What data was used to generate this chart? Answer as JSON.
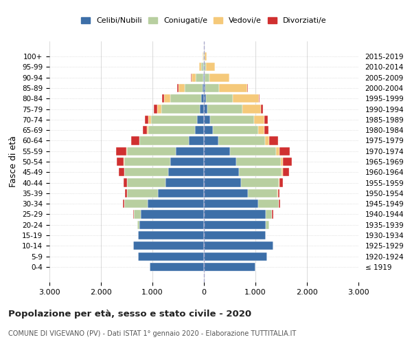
{
  "age_groups": [
    "0-4",
    "5-9",
    "10-14",
    "15-19",
    "20-24",
    "25-29",
    "30-34",
    "35-39",
    "40-44",
    "45-49",
    "50-54",
    "55-59",
    "60-64",
    "65-69",
    "70-74",
    "75-79",
    "80-84",
    "85-89",
    "90-94",
    "95-99",
    "100+"
  ],
  "birth_years": [
    "2015-2019",
    "2010-2014",
    "2005-2009",
    "2000-2004",
    "1995-1999",
    "1990-1994",
    "1985-1989",
    "1980-1984",
    "1975-1979",
    "1970-1974",
    "1965-1969",
    "1960-1964",
    "1955-1959",
    "1950-1954",
    "1945-1949",
    "1940-1944",
    "1935-1939",
    "1930-1934",
    "1925-1929",
    "1920-1924",
    "≤ 1919"
  ],
  "male": {
    "celibi": [
      1050,
      1280,
      1380,
      1280,
      1250,
      1230,
      1100,
      900,
      750,
      700,
      650,
      550,
      300,
      180,
      130,
      80,
      50,
      30,
      15,
      10,
      2
    ],
    "coniugati": [
      0,
      0,
      0,
      0,
      50,
      130,
      450,
      600,
      750,
      850,
      900,
      950,
      950,
      900,
      900,
      750,
      600,
      350,
      150,
      50,
      10
    ],
    "vedovi": [
      0,
      0,
      0,
      0,
      0,
      0,
      0,
      0,
      0,
      0,
      10,
      10,
      10,
      30,
      50,
      80,
      130,
      120,
      80,
      30,
      10
    ],
    "divorziati": [
      0,
      0,
      0,
      0,
      0,
      20,
      30,
      30,
      60,
      100,
      130,
      200,
      150,
      80,
      70,
      60,
      30,
      15,
      5,
      3,
      0
    ]
  },
  "female": {
    "nubili": [
      1000,
      1230,
      1350,
      1200,
      1200,
      1200,
      1050,
      850,
      720,
      680,
      620,
      500,
      280,
      170,
      120,
      70,
      40,
      20,
      10,
      5,
      2
    ],
    "coniugate": [
      0,
      0,
      0,
      0,
      60,
      120,
      400,
      580,
      730,
      820,
      870,
      900,
      900,
      880,
      850,
      680,
      520,
      270,
      100,
      30,
      5
    ],
    "vedove": [
      0,
      0,
      0,
      0,
      0,
      0,
      0,
      10,
      20,
      30,
      40,
      60,
      80,
      120,
      200,
      350,
      500,
      550,
      380,
      180,
      50
    ],
    "divorziate": [
      0,
      0,
      0,
      0,
      0,
      20,
      30,
      30,
      60,
      120,
      180,
      200,
      180,
      80,
      70,
      50,
      25,
      10,
      5,
      3,
      0
    ]
  },
  "colors": {
    "celibi": "#3d6fa8",
    "coniugati": "#b8cfa0",
    "vedovi": "#f5c97a",
    "divorziati": "#d03030"
  },
  "xlim": 3000,
  "title": "Popolazione per età, sesso e stato civile - 2020",
  "subtitle": "COMUNE DI VIGEVANO (PV) - Dati ISTAT 1° gennaio 2020 - Elaborazione TUTTITALIA.IT",
  "legend_labels": [
    "Celibi/Nubili",
    "Coniugati/e",
    "Vedovi/e",
    "Divorziati/e"
  ],
  "ylabel_left": "Fasce di età",
  "background_color": "#ffffff",
  "grid_color": "#cccccc"
}
